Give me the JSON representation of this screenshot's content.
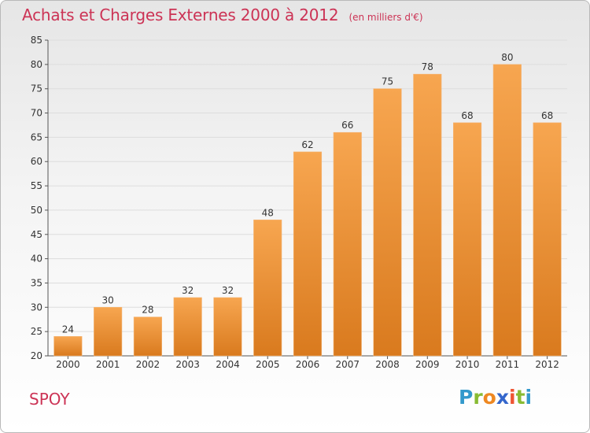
{
  "header": {
    "title": "Achats et Charges Externes 2000 à 2012",
    "unit": "(en milliers d'€)"
  },
  "footer": {
    "place": "SPOY",
    "logo": "Proxiti"
  },
  "colors": {
    "title": "#cc3355",
    "bar_light": "#f7a650",
    "bar_dark": "#d97a1e",
    "grid": "#dddddd",
    "logo_letters": [
      "#3399cc",
      "#88bb33",
      "#ee8822",
      "#3366cc",
      "#ee5533",
      "#88bb33",
      "#3399cc"
    ]
  },
  "chart_data": {
    "type": "bar",
    "title": "Achats et Charges Externes 2000 à 2012",
    "subtitle": "(en milliers d'€)",
    "categories": [
      "2000",
      "2001",
      "2002",
      "2003",
      "2004",
      "2005",
      "2006",
      "2007",
      "2008",
      "2009",
      "2010",
      "2011",
      "2012"
    ],
    "values": [
      24,
      30,
      28,
      32,
      32,
      48,
      62,
      66,
      75,
      78,
      68,
      80,
      68
    ],
    "ylim": [
      20,
      85
    ],
    "yticks": [
      20,
      25,
      30,
      35,
      40,
      45,
      50,
      55,
      60,
      65,
      70,
      75,
      80,
      85
    ],
    "grid": true,
    "xlabel": "",
    "ylabel": ""
  }
}
